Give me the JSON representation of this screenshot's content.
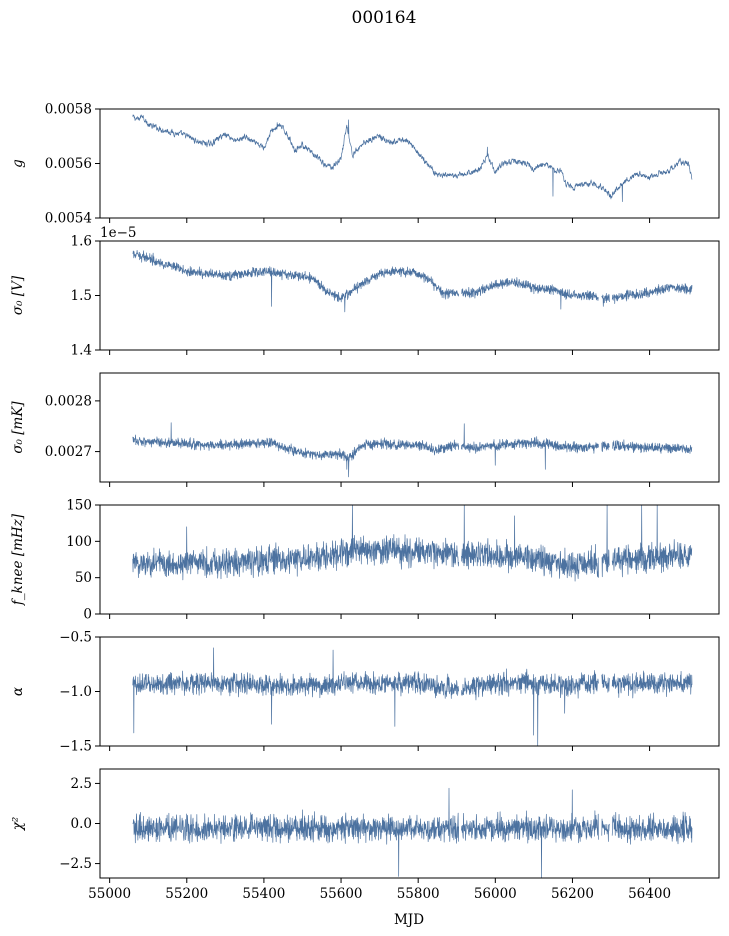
{
  "figure": {
    "title": "000164",
    "xlabel": "MJD",
    "line_color": "#4c72a0"
  },
  "chart_data": [
    {
      "type": "line",
      "name": "gain",
      "ylabel": "g",
      "offset_text": "",
      "x_range": [
        55060,
        56510
      ],
      "xlim": [
        54975,
        56580
      ],
      "ylim": [
        0.0054,
        0.0058
      ],
      "yticks": [
        0.0054,
        0.0056,
        0.0058
      ],
      "ytick_labels": [
        "0.0054",
        "0.0056",
        "0.0058"
      ],
      "noise": 8e-06,
      "trend": [
        [
          55060,
          0.00577
        ],
        [
          55075,
          0.00576
        ],
        [
          55085,
          0.00578
        ],
        [
          55100,
          0.00574
        ],
        [
          55150,
          0.00572
        ],
        [
          55200,
          0.0057
        ],
        [
          55230,
          0.00568
        ],
        [
          55260,
          0.00567
        ],
        [
          55280,
          0.00569
        ],
        [
          55300,
          0.00571
        ],
        [
          55330,
          0.00568
        ],
        [
          55350,
          0.0057
        ],
        [
          55380,
          0.00567
        ],
        [
          55400,
          0.00566
        ],
        [
          55420,
          0.00572
        ],
        [
          55440,
          0.00574
        ],
        [
          55460,
          0.00571
        ],
        [
          55480,
          0.00565
        ],
        [
          55500,
          0.00567
        ],
        [
          55520,
          0.00564
        ],
        [
          55540,
          0.00562
        ],
        [
          55560,
          0.00559
        ],
        [
          55580,
          0.00559
        ],
        [
          55600,
          0.00562
        ],
        [
          55615,
          0.00574
        ],
        [
          55630,
          0.00563
        ],
        [
          55660,
          0.00568
        ],
        [
          55700,
          0.0057
        ],
        [
          55730,
          0.00567
        ],
        [
          55760,
          0.00569
        ],
        [
          55790,
          0.00566
        ],
        [
          55810,
          0.00562
        ],
        [
          55830,
          0.00559
        ],
        [
          55850,
          0.00556
        ],
        [
          55880,
          0.00555
        ],
        [
          55920,
          0.00556
        ],
        [
          55960,
          0.00558
        ],
        [
          55980,
          0.00563
        ],
        [
          56000,
          0.00557
        ],
        [
          56020,
          0.0056
        ],
        [
          56050,
          0.00561
        ],
        [
          56080,
          0.0056
        ],
        [
          56100,
          0.00558
        ],
        [
          56120,
          0.0056
        ],
        [
          56140,
          0.00559
        ],
        [
          56160,
          0.00557
        ],
        [
          56170,
          0.00558
        ],
        [
          56180,
          0.00553
        ],
        [
          56200,
          0.00551
        ],
        [
          56220,
          0.00552
        ],
        [
          56250,
          0.00553
        ],
        [
          56280,
          0.00551
        ],
        [
          56300,
          0.00548
        ],
        [
          56320,
          0.00552
        ],
        [
          56350,
          0.00555
        ],
        [
          56380,
          0.00556
        ],
        [
          56400,
          0.00555
        ],
        [
          56420,
          0.00556
        ],
        [
          56450,
          0.00557
        ],
        [
          56480,
          0.00561
        ],
        [
          56500,
          0.0056
        ],
        [
          56510,
          0.00555
        ]
      ],
      "spikes": [
        [
          55435,
          0.00575
        ],
        [
          55620,
          0.00576
        ],
        [
          55980,
          0.00566
        ],
        [
          56150,
          0.00548
        ],
        [
          56300,
          0.00547
        ],
        [
          56330,
          0.00546
        ]
      ]
    },
    {
      "type": "line",
      "name": "sigma0_V",
      "ylabel": "σ₀ [V]",
      "offset_text": "1e−5",
      "x_range": [
        55060,
        56510
      ],
      "xlim": [
        54975,
        56580
      ],
      "ylim": [
        1.4,
        1.6
      ],
      "yticks": [
        1.4,
        1.5,
        1.6
      ],
      "ytick_labels": [
        "1.4",
        "1.5",
        "1.6"
      ],
      "noise": 0.008,
      "trend": [
        [
          55060,
          1.575
        ],
        [
          55100,
          1.57
        ],
        [
          55150,
          1.555
        ],
        [
          55200,
          1.545
        ],
        [
          55250,
          1.54
        ],
        [
          55300,
          1.535
        ],
        [
          55350,
          1.54
        ],
        [
          55400,
          1.545
        ],
        [
          55450,
          1.54
        ],
        [
          55500,
          1.535
        ],
        [
          55530,
          1.53
        ],
        [
          55560,
          1.51
        ],
        [
          55600,
          1.495
        ],
        [
          55630,
          1.51
        ],
        [
          55650,
          1.52
        ],
        [
          55700,
          1.54
        ],
        [
          55750,
          1.545
        ],
        [
          55800,
          1.54
        ],
        [
          55830,
          1.53
        ],
        [
          55860,
          1.505
        ],
        [
          55900,
          1.505
        ],
        [
          55950,
          1.505
        ],
        [
          56000,
          1.52
        ],
        [
          56050,
          1.525
        ],
        [
          56100,
          1.515
        ],
        [
          56150,
          1.51
        ],
        [
          56200,
          1.5
        ],
        [
          56250,
          1.5
        ],
        [
          56300,
          1.495
        ],
        [
          56350,
          1.5
        ],
        [
          56400,
          1.505
        ],
        [
          56450,
          1.515
        ],
        [
          56510,
          1.51
        ]
      ],
      "spikes": [
        [
          55420,
          1.48
        ],
        [
          55610,
          1.47
        ],
        [
          56170,
          1.475
        ],
        [
          56280,
          1.48
        ],
        [
          56310,
          1.485
        ]
      ]
    },
    {
      "type": "line",
      "name": "sigma0_mK",
      "ylabel": "σ₀ [mK]",
      "offset_text": "",
      "x_range": [
        55060,
        56510
      ],
      "xlim": [
        54975,
        56580
      ],
      "ylim": [
        0.00264,
        0.002855
      ],
      "yticks": [
        0.0027,
        0.0028
      ],
      "ytick_labels": [
        "0.0027",
        "0.0028"
      ],
      "noise": 9e-06,
      "trend": [
        [
          55060,
          0.002722
        ],
        [
          55150,
          0.002718
        ],
        [
          55250,
          0.002712
        ],
        [
          55350,
          0.002715
        ],
        [
          55420,
          0.002718
        ],
        [
          55460,
          0.002705
        ],
        [
          55500,
          0.002698
        ],
        [
          55550,
          0.002693
        ],
        [
          55600,
          0.002695
        ],
        [
          55620,
          0.002685
        ],
        [
          55650,
          0.002712
        ],
        [
          55700,
          0.002715
        ],
        [
          55800,
          0.002712
        ],
        [
          55850,
          0.002703
        ],
        [
          55900,
          0.002712
        ],
        [
          55950,
          0.002708
        ],
        [
          56000,
          0.002712
        ],
        [
          56050,
          0.002715
        ],
        [
          56100,
          0.002718
        ],
        [
          56150,
          0.002712
        ],
        [
          56200,
          0.00271
        ],
        [
          56250,
          0.002708
        ],
        [
          56300,
          0.002712
        ],
        [
          56400,
          0.002708
        ],
        [
          56510,
          0.002705
        ]
      ],
      "spikes": [
        [
          55620,
          0.00265
        ],
        [
          55615,
          0.002665
        ],
        [
          55920,
          0.002755
        ],
        [
          56000,
          0.002673
        ],
        [
          56130,
          0.002665
        ],
        [
          55160,
          0.002757
        ]
      ]
    },
    {
      "type": "line",
      "name": "fknee",
      "ylabel": "f_knee [mHz]",
      "offset_text": "",
      "x_range": [
        55060,
        56510
      ],
      "xlim": [
        54975,
        56580
      ],
      "ylim": [
        0,
        150
      ],
      "yticks": [
        0,
        50,
        100,
        150
      ],
      "ytick_labels": [
        "0",
        "50",
        "100",
        "150"
      ],
      "noise": 18,
      "trend": [
        [
          55060,
          70
        ],
        [
          55200,
          70
        ],
        [
          55400,
          72
        ],
        [
          55550,
          78
        ],
        [
          55650,
          88
        ],
        [
          55800,
          84
        ],
        [
          55950,
          82
        ],
        [
          56100,
          78
        ],
        [
          56200,
          66
        ],
        [
          56300,
          72
        ],
        [
          56400,
          78
        ],
        [
          56510,
          80
        ]
      ],
      "spikes": [
        [
          55630,
          150
        ],
        [
          55920,
          150
        ],
        [
          56050,
          135
        ],
        [
          56290,
          150
        ],
        [
          56380,
          150
        ],
        [
          56420,
          150
        ],
        [
          55200,
          120
        ]
      ]
    },
    {
      "type": "line",
      "name": "alpha",
      "ylabel": "α",
      "offset_text": "",
      "x_range": [
        55060,
        56510
      ],
      "xlim": [
        54975,
        56580
      ],
      "ylim": [
        -1.5,
        -0.5
      ],
      "yticks": [
        -1.5,
        -1.0,
        -0.5
      ],
      "ytick_labels": [
        "−1.5",
        "−1.0",
        "−0.5"
      ],
      "noise": 0.09,
      "trend": [
        [
          55060,
          -0.93
        ],
        [
          55300,
          -0.92
        ],
        [
          55450,
          -0.95
        ],
        [
          55600,
          -0.93
        ],
        [
          55800,
          -0.92
        ],
        [
          55900,
          -0.98
        ],
        [
          56000,
          -0.92
        ],
        [
          56200,
          -0.93
        ],
        [
          56350,
          -0.93
        ],
        [
          56510,
          -0.92
        ]
      ],
      "spikes": [
        [
          55063,
          -1.38
        ],
        [
          55270,
          -0.6
        ],
        [
          55420,
          -1.3
        ],
        [
          55580,
          -0.62
        ],
        [
          55740,
          -1.32
        ],
        [
          56110,
          -1.5
        ],
        [
          56100,
          -1.4
        ],
        [
          56180,
          -1.2
        ]
      ]
    },
    {
      "type": "line",
      "name": "chi2",
      "ylabel": "χ²",
      "offset_text": "",
      "x_range": [
        55060,
        56510
      ],
      "xlim": [
        54975,
        56580
      ],
      "ylim": [
        -3.4,
        3.4
      ],
      "yticks": [
        -2.5,
        0.0,
        2.5
      ],
      "ytick_labels": [
        "−2.5",
        "0.0",
        "2.5"
      ],
      "noise": 0.75,
      "trend": [
        [
          55060,
          -0.3
        ],
        [
          55500,
          -0.3
        ],
        [
          56000,
          -0.3
        ],
        [
          56510,
          -0.3
        ]
      ],
      "spikes": [
        [
          55880,
          2.2
        ],
        [
          56200,
          2.1
        ],
        [
          56120,
          -3.4
        ],
        [
          55750,
          -3.3
        ]
      ]
    }
  ],
  "xaxis": {
    "ticks": [
      55000,
      55200,
      55400,
      55600,
      55800,
      56000,
      56200,
      56400
    ],
    "tick_labels": [
      "55000",
      "55200",
      "55400",
      "55600",
      "55800",
      "56000",
      "56200",
      "56400"
    ],
    "gaps": [
      [
        55905,
        55912
      ],
      [
        56268,
        56276
      ],
      [
        56296,
        56303
      ]
    ]
  }
}
